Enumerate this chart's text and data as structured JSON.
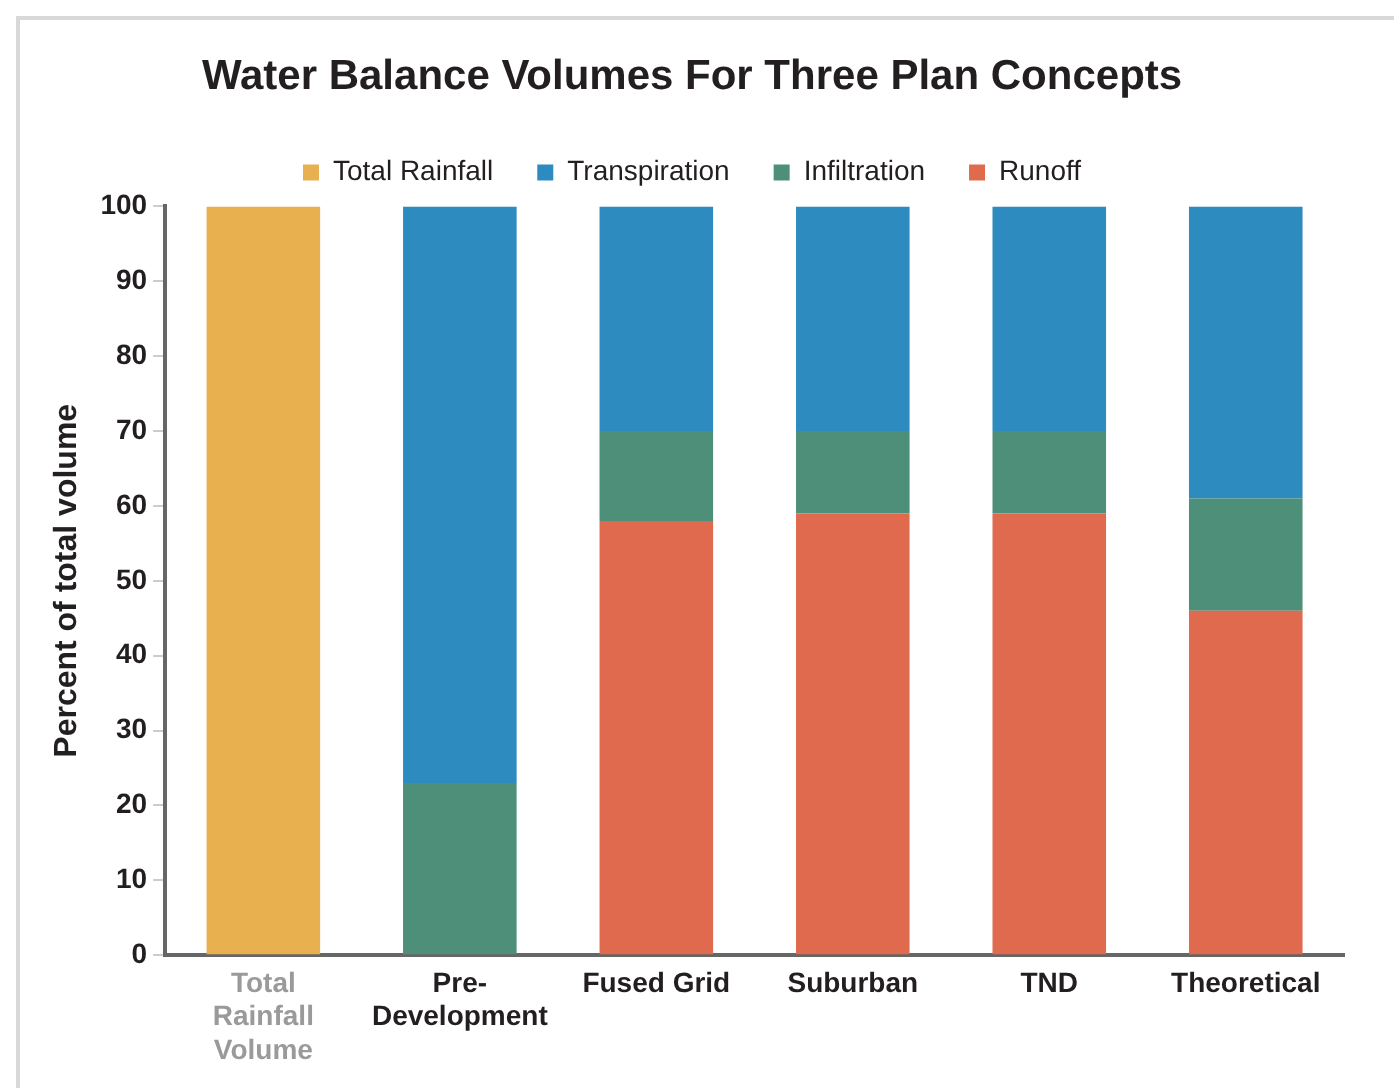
{
  "chart_data": {
    "type": "bar",
    "title": "Water Balance Volumes For Three Plan Concepts",
    "ylabel": "Percent of total volume",
    "categories": [
      "Total Rainfall Volume",
      "Pre-Development",
      "Fused Grid",
      "Suburban",
      "TND",
      "Theoretical"
    ],
    "stacked": true,
    "legend": "top",
    "grid": false,
    "ylim": [
      0,
      100
    ],
    "yticks": [
      0,
      10,
      20,
      30,
      40,
      50,
      60,
      70,
      80,
      90,
      100
    ],
    "series": [
      {
        "name": "Total Rainfall",
        "color": "#e8b04f",
        "values": [
          100,
          null,
          null,
          null,
          null,
          null
        ]
      },
      {
        "name": "Runoff",
        "color": "#e06a4e",
        "values": [
          null,
          null,
          58,
          59,
          59,
          46
        ]
      },
      {
        "name": "Infiltration",
        "color": "#4e8f7a",
        "values": [
          null,
          23,
          12,
          11,
          11,
          15
        ]
      },
      {
        "name": "Transpiration",
        "color": "#2e8bc0",
        "values": [
          null,
          77,
          30,
          30,
          30,
          39
        ]
      }
    ]
  }
}
